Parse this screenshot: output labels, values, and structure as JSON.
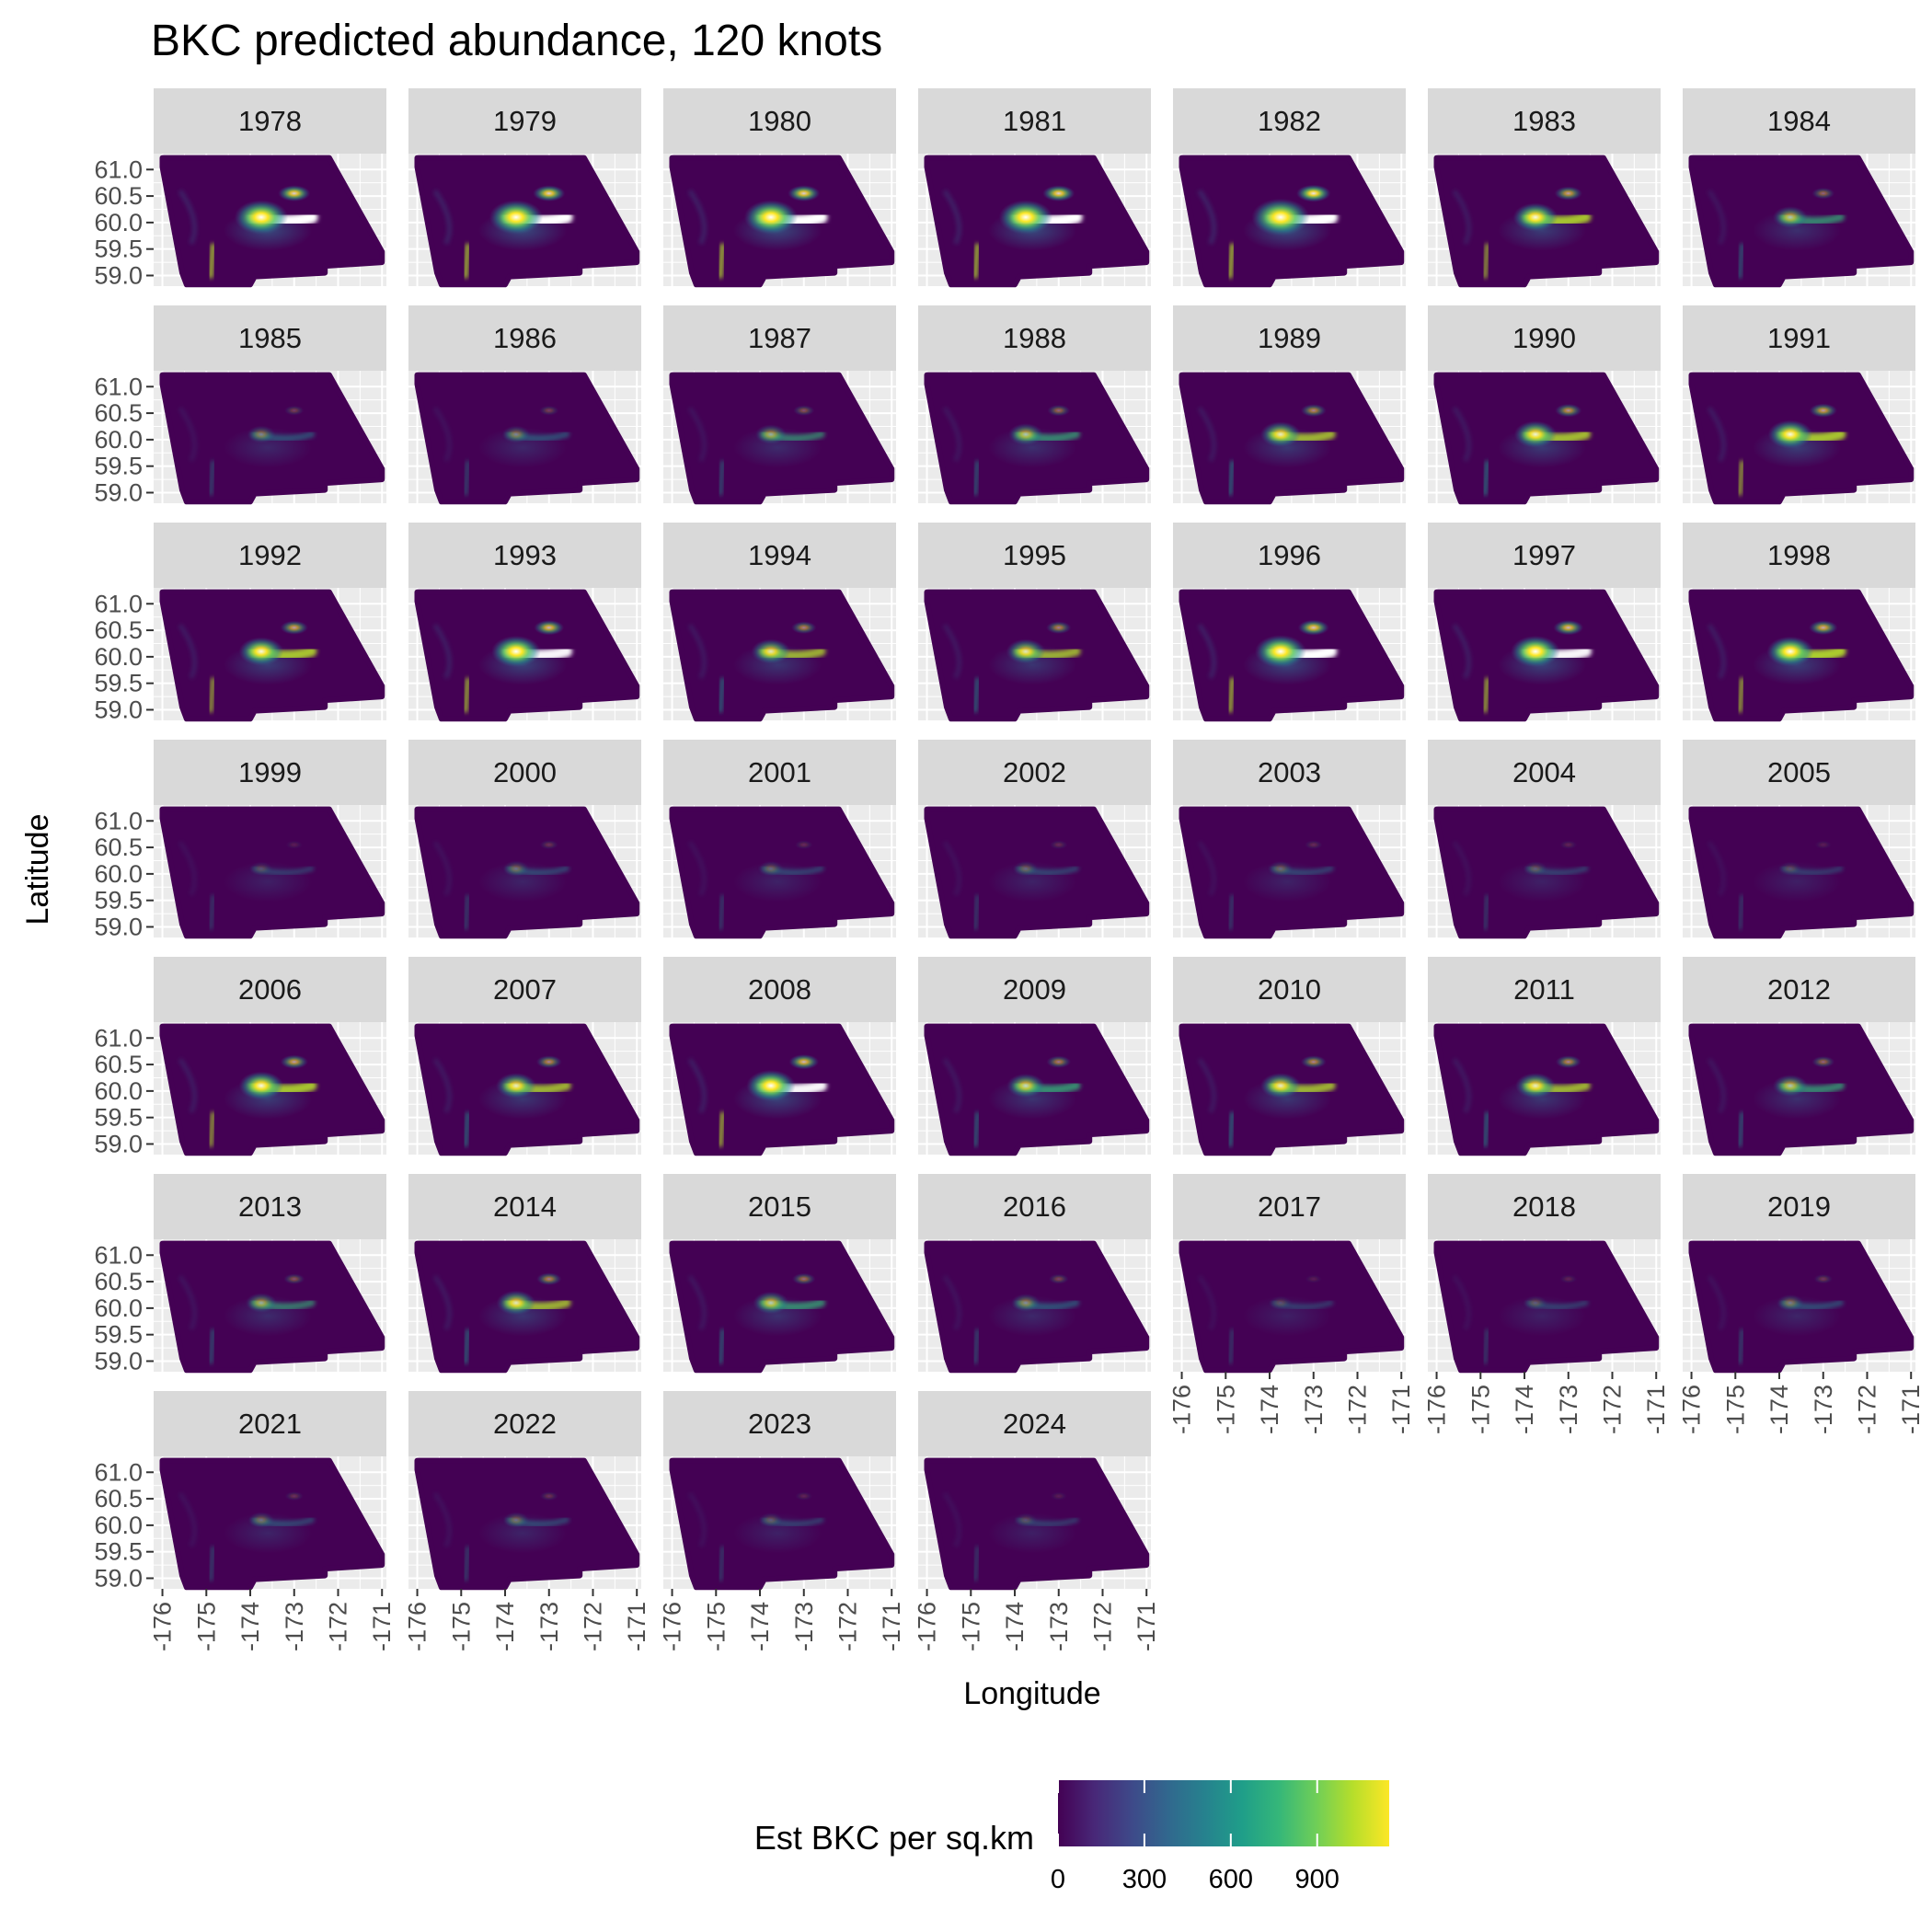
{
  "chart_data": {
    "type": "heatmap",
    "title": "BKC predicted abundance, 120 knots",
    "xlabel": "Longitude",
    "ylabel": "Latitude",
    "facet_years": [
      "1978",
      "1979",
      "1980",
      "1981",
      "1982",
      "1983",
      "1984",
      "1985",
      "1986",
      "1987",
      "1988",
      "1989",
      "1990",
      "1991",
      "1992",
      "1993",
      "1994",
      "1995",
      "1996",
      "1997",
      "1998",
      "1999",
      "2000",
      "2001",
      "2002",
      "2003",
      "2004",
      "2005",
      "2006",
      "2007",
      "2008",
      "2009",
      "2010",
      "2011",
      "2012",
      "2013",
      "2014",
      "2015",
      "2016",
      "2017",
      "2018",
      "2019",
      "2021",
      "2022",
      "2023",
      "2024"
    ],
    "x_ticks": [
      "-176",
      "-175",
      "-174",
      "-173",
      "-172",
      "-171"
    ],
    "y_ticks": [
      "61.0",
      "60.5",
      "60.0",
      "59.5",
      "59.0"
    ],
    "xlim": [
      -176.2,
      -170.9
    ],
    "ylim": [
      58.8,
      61.3
    ],
    "grid": true,
    "legend": {
      "title": "Est BKC per sq.km",
      "position": "bottom",
      "ticks": [
        "0",
        "300",
        "600",
        "900"
      ],
      "range": [
        0,
        1150
      ],
      "colors": [
        "#440154",
        "#482878",
        "#3e4989",
        "#31688e",
        "#26828e",
        "#1f9e89",
        "#35b779",
        "#6ece58",
        "#b5de2b",
        "#fde725"
      ]
    },
    "hotspot_intensity": [
      1.6,
      1.6,
      1.6,
      1.6,
      1.8,
      1.2,
      0.75,
      0.45,
      0.45,
      0.6,
      0.75,
      1.0,
      1.1,
      1.2,
      1.2,
      1.4,
      0.95,
      0.95,
      1.5,
      1.4,
      1.3,
      0.2,
      0.35,
      0.3,
      0.3,
      0.3,
      0.25,
      0.2,
      1.2,
      1.0,
      1.4,
      0.9,
      1.0,
      1.0,
      0.75,
      0.6,
      0.95,
      0.8,
      0.5,
      0.2,
      0.25,
      0.4,
      0.35,
      0.35,
      0.25,
      0.2
    ]
  }
}
